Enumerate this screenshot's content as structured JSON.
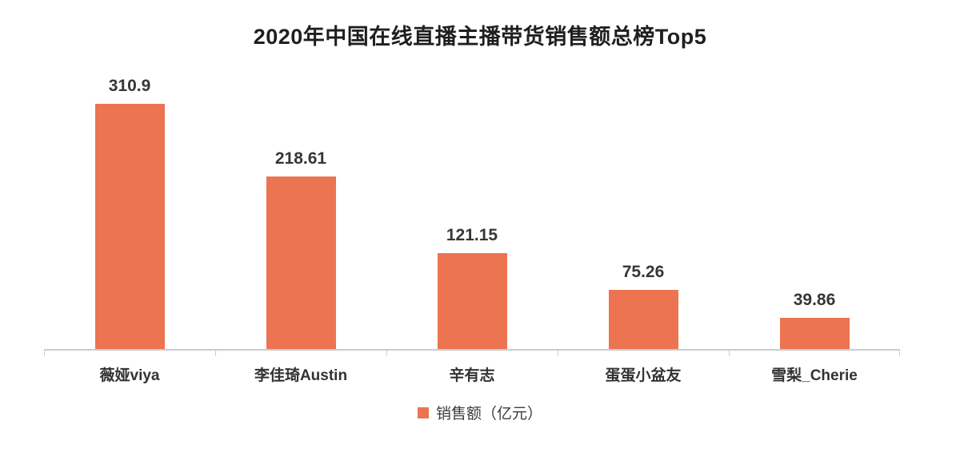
{
  "chart_data": {
    "type": "bar",
    "title": "2020年中国在线直播主播带货销售额总榜Top5",
    "categories": [
      "薇娅viya",
      "李佳琦Austin",
      "辛有志",
      "蛋蛋小盆友",
      "雪梨_Cherie"
    ],
    "values": [
      310.9,
      218.61,
      121.15,
      75.26,
      39.86
    ],
    "value_labels": [
      "310.9",
      "218.61",
      "121.15",
      "75.26",
      "39.86"
    ],
    "legend_label": "销售额（亿元）",
    "bar_color": "#EC7450",
    "axis_color": "#c9cdd1",
    "xlabel": "",
    "ylabel": "",
    "ylim": [
      0,
      340
    ],
    "grid": false,
    "legend_position": "bottom"
  }
}
